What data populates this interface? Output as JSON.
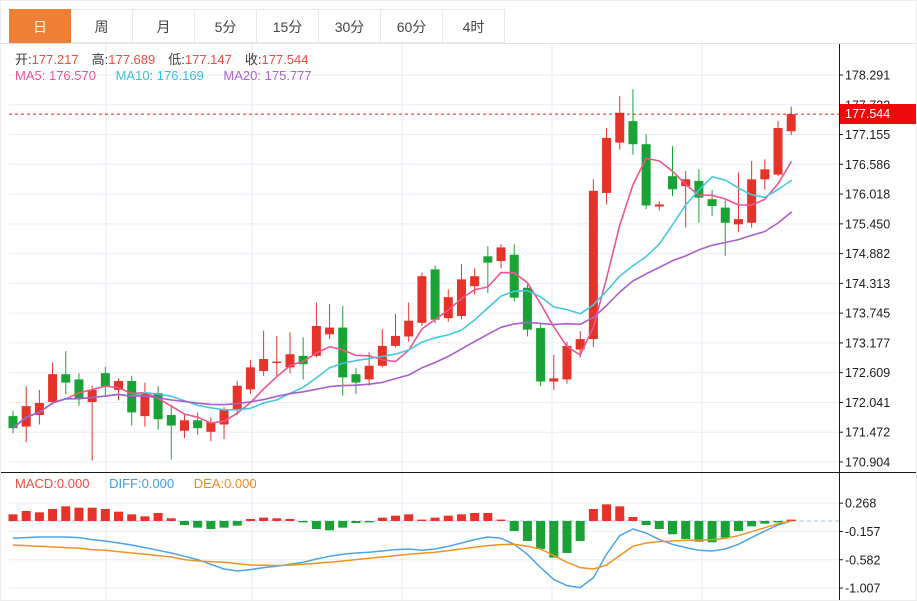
{
  "tabs": {
    "items": [
      {
        "label": "日",
        "active": true
      },
      {
        "label": "周",
        "active": false
      },
      {
        "label": "月",
        "active": false
      },
      {
        "label": "5分",
        "active": false
      },
      {
        "label": "15分",
        "active": false
      },
      {
        "label": "30分",
        "active": false
      },
      {
        "label": "60分",
        "active": false
      },
      {
        "label": "4时",
        "active": false
      }
    ]
  },
  "ohlc": {
    "open_label": "开:",
    "open": "177.217",
    "high_label": "高:",
    "high": "177.689",
    "low_label": "低:",
    "low": "177.147",
    "close_label": "收:",
    "close": "177.544"
  },
  "ma": {
    "ma5_label": "MA5:",
    "ma5": "176.570",
    "ma10_label": "MA10:",
    "ma10": "176.169",
    "ma20_label": "MA20:",
    "ma20": "175.777"
  },
  "macd_header": {
    "macd_label": "MACD:",
    "macd": "0.000",
    "diff_label": "DIFF:",
    "diff": "0.000",
    "dea_label": "DEA:",
    "dea": "0.000"
  },
  "price_tag": "177.544",
  "colors": {
    "up": "#e63329",
    "down": "#1aa334",
    "ma5": "#f0558f",
    "ma10": "#45c8e0",
    "ma20": "#aa5ecc",
    "diff_line": "#4da3e8",
    "dea_line": "#f0931e",
    "grid": "#e9eef5",
    "vgrid": "#e3eaf2",
    "axis": "#1a1a1a",
    "tick_text": "#1c1c1c",
    "dotted_price_line": "#ef1a0d",
    "price_tag_bg": "#ee0a0a",
    "macd_zero_dash": "#a9d7ef",
    "active_tab": "#ee7f35"
  },
  "chart_data": {
    "type": "candlestick",
    "title": "",
    "grid": true,
    "legend_position": "none",
    "panels": [
      {
        "name": "price",
        "y_ticks": [
          "178.291",
          "177.723",
          "177.155",
          "176.586",
          "176.018",
          "175.450",
          "174.882",
          "174.313",
          "173.745",
          "173.177",
          "172.609",
          "172.041",
          "171.472",
          "170.904"
        ],
        "y_range": [
          170.904,
          178.291
        ],
        "current_price": 177.544,
        "ma_periods": [
          5,
          10,
          20
        ],
        "candles": [
          [
            171.78,
            171.88,
            171.45,
            171.55
          ],
          [
            171.58,
            172.35,
            171.28,
            171.97
          ],
          [
            171.8,
            172.28,
            171.62,
            172.03
          ],
          [
            172.05,
            172.8,
            172.0,
            172.58
          ],
          [
            172.58,
            173.02,
            172.2,
            172.42
          ],
          [
            172.48,
            172.6,
            171.98,
            172.12
          ],
          [
            172.05,
            172.36,
            170.93,
            172.28
          ],
          [
            172.6,
            172.72,
            172.18,
            172.35
          ],
          [
            172.28,
            172.5,
            172.08,
            172.45
          ],
          [
            172.45,
            172.55,
            171.6,
            171.85
          ],
          [
            171.78,
            172.42,
            171.58,
            172.22
          ],
          [
            172.22,
            172.35,
            171.52,
            171.72
          ],
          [
            171.8,
            172.0,
            170.95,
            171.6
          ],
          [
            171.5,
            171.82,
            171.36,
            171.7
          ],
          [
            171.7,
            171.85,
            171.42,
            171.55
          ],
          [
            171.48,
            171.76,
            171.3,
            171.66
          ],
          [
            171.62,
            171.95,
            171.34,
            171.9
          ],
          [
            171.91,
            172.45,
            171.8,
            172.36
          ],
          [
            172.29,
            172.85,
            172.2,
            172.71
          ],
          [
            172.64,
            173.41,
            172.55,
            172.87
          ],
          [
            172.8,
            173.31,
            172.55,
            172.82
          ],
          [
            172.71,
            173.38,
            172.6,
            172.96
          ],
          [
            172.93,
            173.28,
            172.48,
            172.77
          ],
          [
            172.93,
            173.95,
            172.9,
            173.5
          ],
          [
            173.34,
            173.92,
            173.25,
            173.47
          ],
          [
            173.47,
            173.88,
            172.17,
            172.52
          ],
          [
            172.58,
            172.7,
            172.2,
            172.42
          ],
          [
            172.48,
            173.0,
            172.36,
            172.74
          ],
          [
            172.74,
            173.44,
            172.71,
            173.12
          ],
          [
            173.12,
            173.73,
            173.09,
            173.31
          ],
          [
            173.3,
            173.95,
            173.2,
            173.6
          ],
          [
            173.56,
            174.52,
            173.5,
            174.45
          ],
          [
            174.58,
            174.66,
            173.55,
            173.62
          ],
          [
            173.65,
            174.2,
            173.58,
            174.05
          ],
          [
            173.69,
            174.68,
            173.63,
            174.39
          ],
          [
            174.26,
            174.6,
            174.1,
            174.45
          ],
          [
            174.83,
            175.02,
            174.13,
            174.71
          ],
          [
            174.74,
            175.06,
            174.6,
            175.0
          ],
          [
            174.86,
            175.06,
            173.97,
            174.04
          ],
          [
            174.23,
            174.3,
            173.3,
            173.43
          ],
          [
            173.46,
            173.55,
            172.35,
            172.44
          ],
          [
            172.44,
            172.95,
            172.28,
            172.5
          ],
          [
            172.48,
            173.2,
            172.4,
            173.12
          ],
          [
            173.05,
            173.4,
            172.9,
            173.25
          ],
          [
            173.25,
            176.3,
            173.1,
            176.08
          ],
          [
            176.04,
            177.28,
            175.82,
            177.09
          ],
          [
            177.0,
            177.89,
            176.87,
            177.57
          ],
          [
            177.41,
            178.02,
            176.77,
            176.97
          ],
          [
            176.97,
            177.16,
            175.73,
            175.8
          ],
          [
            175.78,
            175.88,
            175.7,
            175.82
          ],
          [
            176.36,
            176.93,
            175.98,
            176.11
          ],
          [
            176.17,
            176.46,
            175.38,
            176.3
          ],
          [
            176.27,
            176.49,
            175.47,
            175.95
          ],
          [
            175.92,
            176.1,
            175.6,
            175.79
          ],
          [
            175.76,
            175.9,
            174.84,
            175.47
          ],
          [
            175.44,
            176.43,
            175.3,
            175.54
          ],
          [
            175.47,
            176.65,
            175.38,
            176.3
          ],
          [
            176.3,
            176.68,
            176.1,
            176.49
          ],
          [
            176.39,
            177.41,
            176.36,
            177.28
          ],
          [
            177.217,
            177.689,
            177.147,
            177.544
          ]
        ]
      },
      {
        "name": "macd",
        "y_ticks": [
          "0.268",
          "-0.157",
          "-0.582",
          "-1.007"
        ],
        "y_range": [
          -1.007,
          0.268
        ],
        "histogram": [
          0.1,
          0.15,
          0.13,
          0.18,
          0.22,
          0.2,
          0.2,
          0.18,
          0.14,
          0.1,
          0.07,
          0.12,
          0.04,
          -0.06,
          -0.1,
          -0.12,
          -0.1,
          -0.07,
          0.03,
          0.05,
          0.04,
          0.03,
          -0.02,
          -0.12,
          -0.14,
          -0.1,
          -0.03,
          -0.02,
          0.05,
          0.08,
          0.1,
          0.02,
          0.05,
          0.08,
          0.1,
          0.12,
          0.12,
          0.02,
          -0.15,
          -0.3,
          -0.42,
          -0.55,
          -0.48,
          -0.3,
          0.18,
          0.25,
          0.22,
          0.06,
          -0.06,
          -0.12,
          -0.2,
          -0.27,
          -0.31,
          -0.32,
          -0.25,
          -0.15,
          -0.08,
          -0.04,
          -0.01,
          0.0
        ],
        "diff": [
          -0.26,
          -0.25,
          -0.24,
          -0.24,
          -0.24,
          -0.25,
          -0.28,
          -0.3,
          -0.33,
          -0.36,
          -0.4,
          -0.44,
          -0.48,
          -0.53,
          -0.58,
          -0.65,
          -0.72,
          -0.75,
          -0.73,
          -0.7,
          -0.68,
          -0.65,
          -0.62,
          -0.57,
          -0.53,
          -0.5,
          -0.48,
          -0.47,
          -0.45,
          -0.43,
          -0.42,
          -0.44,
          -0.42,
          -0.38,
          -0.33,
          -0.28,
          -0.24,
          -0.26,
          -0.35,
          -0.5,
          -0.7,
          -0.88,
          -0.97,
          -1.0,
          -0.85,
          -0.5,
          -0.22,
          -0.12,
          -0.18,
          -0.28,
          -0.35,
          -0.4,
          -0.44,
          -0.45,
          -0.42,
          -0.35,
          -0.25,
          -0.15,
          -0.06,
          0.0
        ],
        "dea": [
          -0.36,
          -0.37,
          -0.38,
          -0.39,
          -0.4,
          -0.41,
          -0.43,
          -0.44,
          -0.46,
          -0.48,
          -0.5,
          -0.52,
          -0.54,
          -0.58,
          -0.6,
          -0.61,
          -0.62,
          -0.64,
          -0.66,
          -0.665,
          -0.67,
          -0.66,
          -0.65,
          -0.635,
          -0.62,
          -0.6,
          -0.58,
          -0.56,
          -0.54,
          -0.52,
          -0.5,
          -0.485,
          -0.47,
          -0.445,
          -0.42,
          -0.395,
          -0.37,
          -0.355,
          -0.35,
          -0.38,
          -0.42,
          -0.52,
          -0.62,
          -0.7,
          -0.72,
          -0.66,
          -0.52,
          -0.38,
          -0.33,
          -0.31,
          -0.3,
          -0.29,
          -0.285,
          -0.28,
          -0.26,
          -0.22,
          -0.16,
          -0.1,
          -0.04,
          0.0
        ]
      }
    ]
  }
}
